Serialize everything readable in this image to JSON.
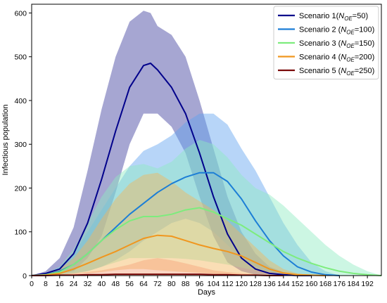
{
  "chart_data": {
    "type": "line",
    "xlabel": "Days",
    "ylabel": "Infectious population",
    "xlim": [
      0,
      200
    ],
    "ylim": [
      0,
      620
    ],
    "x_ticks": [
      0,
      8,
      16,
      24,
      32,
      40,
      48,
      56,
      64,
      72,
      80,
      88,
      96,
      104,
      112,
      120,
      128,
      136,
      144,
      152,
      160,
      168,
      176,
      184,
      192
    ],
    "y_ticks": [
      0,
      100,
      200,
      300,
      400,
      500,
      600
    ],
    "legend_position": "top-right",
    "series": [
      {
        "name": "Scenario 1",
        "subscript_label": {
          "prefix": "Scenario 1(",
          "var": "N",
          "sub": "OE",
          "suffix": "=50)"
        },
        "color": "#00008b",
        "band_color": "#3a3a9c",
        "x": [
          0,
          8,
          16,
          24,
          32,
          40,
          48,
          56,
          64,
          68,
          72,
          80,
          88,
          96,
          104,
          112,
          120,
          128,
          136,
          144,
          152,
          160
        ],
        "values": [
          0,
          5,
          15,
          50,
          120,
          220,
          330,
          430,
          480,
          485,
          470,
          430,
          370,
          280,
          180,
          95,
          40,
          15,
          5,
          2,
          0,
          0
        ],
        "upper": [
          0,
          10,
          40,
          110,
          240,
          380,
          500,
          580,
          605,
          600,
          570,
          550,
          500,
          400,
          290,
          180,
          100,
          50,
          20,
          8,
          2,
          0
        ],
        "lower": [
          0,
          0,
          5,
          10,
          40,
          90,
          190,
          300,
          370,
          370,
          370,
          340,
          280,
          180,
          90,
          30,
          10,
          2,
          0,
          0,
          0,
          0
        ]
      },
      {
        "name": "Scenario 2",
        "subscript_label": {
          "prefix": "Scenario 2 (",
          "var": "N",
          "sub": "OE",
          "suffix": "=100)"
        },
        "color": "#1c7ed6",
        "band_color": "#5fa2f0",
        "x": [
          0,
          8,
          16,
          24,
          32,
          40,
          48,
          56,
          64,
          72,
          80,
          88,
          96,
          104,
          112,
          120,
          128,
          136,
          144,
          152,
          160,
          168,
          176
        ],
        "values": [
          0,
          2,
          10,
          25,
          50,
          80,
          110,
          140,
          165,
          190,
          210,
          225,
          235,
          235,
          215,
          175,
          125,
          80,
          45,
          20,
          8,
          2,
          0
        ],
        "upper": [
          0,
          5,
          20,
          50,
          100,
          150,
          200,
          250,
          285,
          300,
          320,
          350,
          370,
          370,
          345,
          290,
          240,
          180,
          120,
          70,
          30,
          10,
          0
        ],
        "lower": [
          0,
          0,
          2,
          5,
          10,
          20,
          35,
          55,
          80,
          100,
          120,
          130,
          120,
          100,
          70,
          40,
          20,
          8,
          2,
          0,
          0,
          0,
          0
        ]
      },
      {
        "name": "Scenario 3",
        "subscript_label": {
          "prefix": "Scenario 3 (",
          "var": "N",
          "sub": "OE",
          "suffix": "=150)"
        },
        "color": "#7dec7d",
        "band_color": "#8feac0",
        "x": [
          0,
          8,
          16,
          24,
          32,
          40,
          48,
          56,
          64,
          72,
          80,
          88,
          96,
          104,
          112,
          120,
          128,
          136,
          144,
          152,
          160,
          168,
          176,
          184,
          192,
          200
        ],
        "values": [
          0,
          2,
          8,
          25,
          50,
          80,
          105,
          125,
          135,
          135,
          140,
          150,
          155,
          145,
          130,
          115,
          95,
          75,
          55,
          40,
          28,
          18,
          10,
          5,
          2,
          0
        ],
        "upper": [
          0,
          5,
          20,
          60,
          120,
          180,
          225,
          250,
          255,
          245,
          260,
          290,
          310,
          300,
          270,
          230,
          200,
          185,
          160,
          130,
          100,
          70,
          45,
          25,
          10,
          0
        ],
        "lower": [
          0,
          0,
          2,
          5,
          10,
          20,
          30,
          40,
          40,
          40,
          40,
          38,
          35,
          30,
          25,
          18,
          12,
          8,
          5,
          3,
          1,
          0,
          0,
          0,
          0,
          0
        ]
      },
      {
        "name": "Scenario 4",
        "subscript_label": {
          "prefix": "Scenario 4 (",
          "var": "N",
          "sub": "OE",
          "suffix": "=200)"
        },
        "color": "#f0961e",
        "band_color": "#f4b65a",
        "x": [
          0,
          8,
          16,
          24,
          32,
          40,
          48,
          56,
          64,
          72,
          80,
          88,
          96,
          104,
          112,
          120,
          128,
          136,
          144,
          152,
          160,
          168
        ],
        "values": [
          0,
          1,
          5,
          15,
          28,
          42,
          55,
          70,
          85,
          92,
          90,
          80,
          70,
          62,
          55,
          45,
          30,
          15,
          6,
          2,
          1,
          0
        ],
        "upper": [
          0,
          3,
          15,
          40,
          80,
          130,
          175,
          210,
          230,
          235,
          215,
          190,
          170,
          150,
          125,
          95,
          65,
          35,
          15,
          5,
          2,
          0
        ],
        "lower": [
          0,
          0,
          1,
          3,
          5,
          8,
          12,
          15,
          15,
          12,
          10,
          8,
          6,
          4,
          2,
          1,
          0,
          0,
          0,
          0,
          0,
          0
        ]
      },
      {
        "name": "Scenario 5",
        "subscript_label": {
          "prefix": "Scenario 5 (",
          "var": "N",
          "sub": "OE",
          "suffix": "=250)"
        },
        "color": "#7a0a0a",
        "band_color": "#f7a27a",
        "x": [
          0,
          8,
          16,
          24,
          32,
          40,
          48,
          56,
          64,
          72,
          80,
          88,
          96,
          104,
          112,
          120,
          128,
          136,
          144
        ],
        "values": [
          0,
          0,
          1,
          1,
          2,
          2,
          3,
          3,
          3,
          3,
          3,
          3,
          3,
          2,
          2,
          1,
          1,
          0,
          0
        ],
        "upper": [
          0,
          1,
          3,
          5,
          8,
          12,
          18,
          25,
          35,
          40,
          35,
          28,
          20,
          12,
          8,
          5,
          3,
          1,
          0
        ],
        "lower": [
          0,
          0,
          0,
          0,
          0,
          0,
          0,
          0,
          0,
          0,
          0,
          0,
          0,
          0,
          0,
          0,
          0,
          0,
          0
        ]
      }
    ]
  }
}
